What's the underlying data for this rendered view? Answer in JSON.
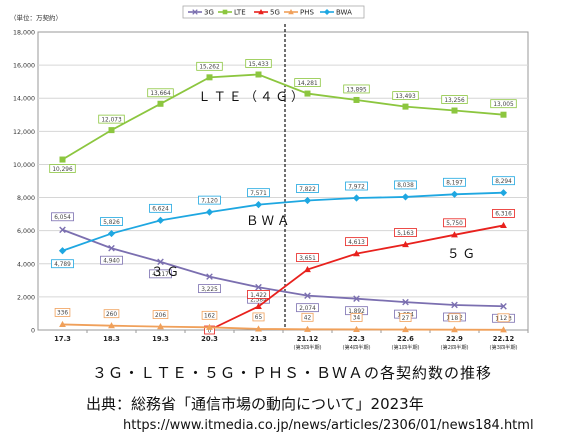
{
  "caption": {
    "title": "３Ｇ・ＬＴＥ・５Ｇ・ＰＨＳ・ＢＷＡの各契約数の推移",
    "source": "出典：総務省「通信市場の動向について」2023年",
    "url": "https://www.itmedia.co.jp/news/articles/2306/01/news184.html"
  },
  "chart_data": {
    "type": "line",
    "ylabel": "（単位：万契約）",
    "ylim": [
      0,
      18000
    ],
    "yticks": [
      "0",
      "2,000",
      "4,000",
      "6,000",
      "8,000",
      "10,000",
      "12,000",
      "14,000",
      "16,000",
      "18,000"
    ],
    "categories": [
      "17.3",
      "18.3",
      "19.3",
      "20.3",
      "21.3",
      "21.12",
      "22.3",
      "22.6",
      "22.9",
      "22.12"
    ],
    "category_sublabels": [
      "",
      "",
      "",
      "",
      "",
      "(第3四半期)",
      "(第4四半期)",
      "(第1四半期)",
      "(第2四半期)",
      "(第3四半期)"
    ],
    "legend_position": "top-center",
    "grid": true,
    "divider_after_category": "21.3",
    "series": [
      {
        "name": "3G",
        "color": "#7b6fb0",
        "marker": "x",
        "label_border": "#7b6fb0",
        "values": [
          6054,
          4940,
          4117,
          3225,
          2584,
          2074,
          1892,
          1684,
          1512,
          1433
        ],
        "labels": [
          "6,054",
          "4,940",
          "4,117",
          "3,225",
          "2,584",
          "2,074",
          "1,892",
          "1,684",
          "1,512",
          "1,433"
        ],
        "annotation": "３Ｇ"
      },
      {
        "name": "LTE",
        "color": "#8cc63f",
        "marker": "square",
        "label_border": "#8cc63f",
        "values": [
          10296,
          12073,
          13664,
          15262,
          15433,
          14281,
          13895,
          13493,
          13256,
          13005
        ],
        "labels": [
          "10,296",
          "12,073",
          "13,664",
          "15,262",
          "15,433",
          "14,281",
          "13,895",
          "13,493",
          "13,256",
          "13,005"
        ],
        "annotation": "ＬＴＥ（４Ｇ）"
      },
      {
        "name": "5G",
        "color": "#e8211d",
        "marker": "triangle",
        "label_border": "#e8211d",
        "values": [
          null,
          null,
          null,
          0,
          1422,
          3651,
          4613,
          5163,
          5750,
          6316
        ],
        "labels": [
          "",
          "",
          "",
          "0",
          "1,422",
          "3,651",
          "4,613",
          "5,163",
          "5,750",
          "6,316"
        ],
        "annotation": "５Ｇ"
      },
      {
        "name": "PHS",
        "color": "#f0a05a",
        "marker": "triangle",
        "label_border": "#f0a05a",
        "values": [
          336,
          260,
          206,
          162,
          65,
          42,
          34,
          27,
          18,
          12
        ],
        "labels": [
          "336",
          "260",
          "206",
          "162",
          "65",
          "42",
          "34",
          "27",
          "18",
          "12"
        ],
        "annotation": ""
      },
      {
        "name": "BWA",
        "color": "#1ea7e1",
        "marker": "diamond",
        "label_border": "#1ea7e1",
        "values": [
          4789,
          5826,
          6624,
          7120,
          7571,
          7822,
          7972,
          8038,
          8197,
          8294
        ],
        "labels": [
          "4,789",
          "5,826",
          "6,624",
          "7,120",
          "7,571",
          "7,822",
          "7,972",
          "8,038",
          "8,197",
          "8,294"
        ],
        "annotation": "ＢＷＡ"
      }
    ]
  }
}
